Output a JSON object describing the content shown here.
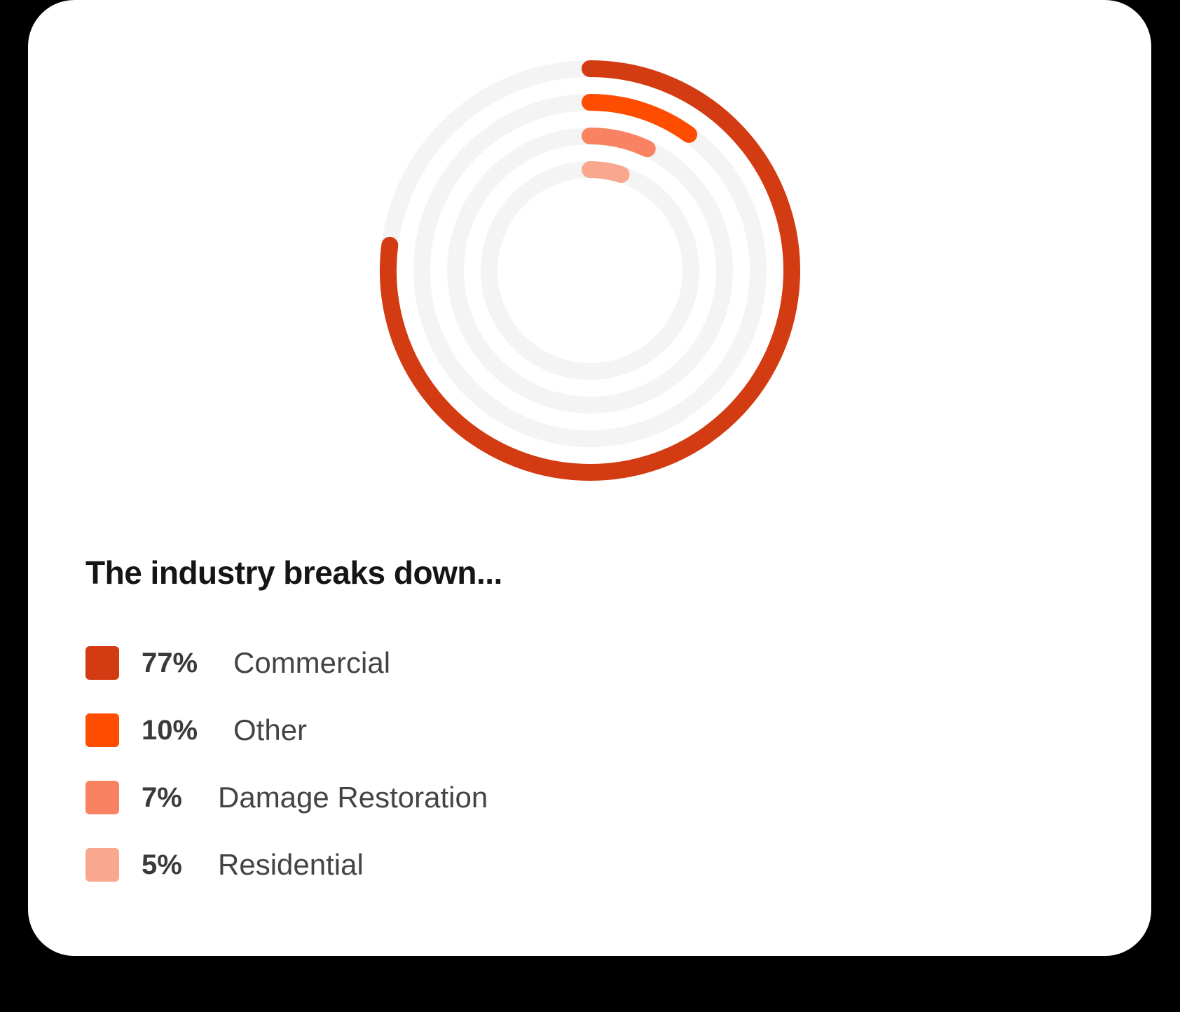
{
  "chart_data": {
    "type": "radial-bar",
    "title": "The industry breaks down...",
    "ylim": [
      0,
      100
    ],
    "track_color": "#f4f4f4",
    "series": [
      {
        "name": "Commercial",
        "value": 77,
        "label": "77%",
        "color": "#d33c12"
      },
      {
        "name": "Other",
        "value": 10,
        "label": "10%",
        "color": "#ff4d00"
      },
      {
        "name": "Damage Restoration",
        "value": 7,
        "label": "7%",
        "color": "#f98262"
      },
      {
        "name": "Residential",
        "value": 5,
        "label": "5%",
        "color": "#f9a88d"
      }
    ]
  }
}
